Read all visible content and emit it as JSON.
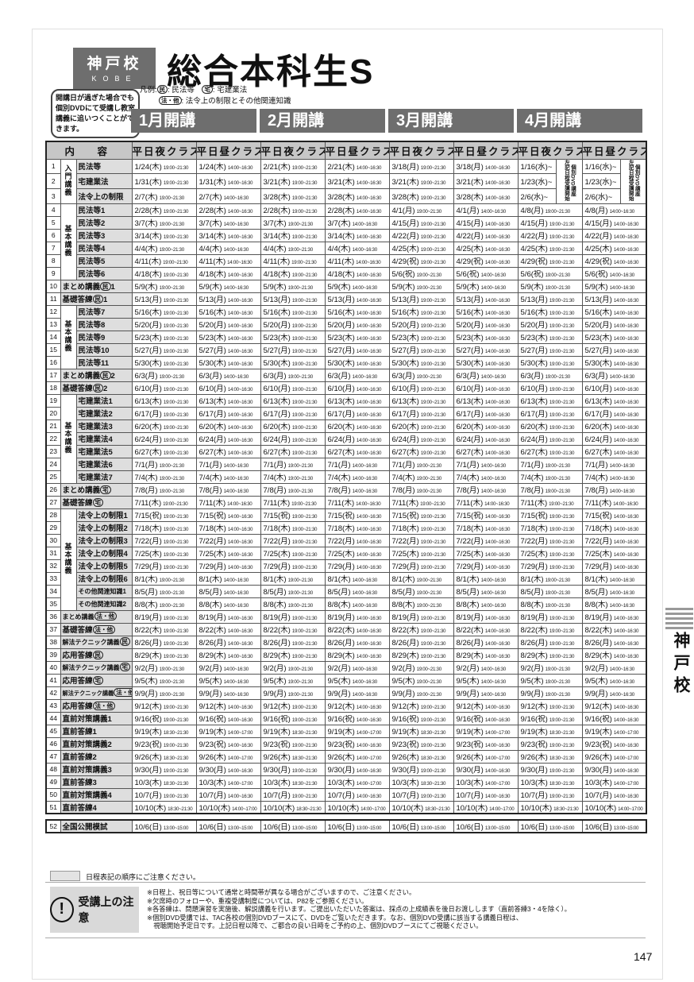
{
  "header": {
    "school_jp": "神戸校",
    "school_en": "KOBE",
    "title": "総合本科生S"
  },
  "intro": {
    "text": "開講日が過ぎた場合でも個別DVDにて受講し教室講義に追いつくことができます。"
  },
  "legend": {
    "prefix": "凡例:",
    "items": [
      {
        "mark": "民",
        "text": "民法等"
      },
      {
        "mark": "宅",
        "text": "宅建業法"
      },
      {
        "mark": "法・他",
        "text": "法令上の制限とその他関連知識"
      }
    ]
  },
  "months": [
    "1月開講",
    "2月開講",
    "3月開講",
    "4月開講"
  ],
  "table": {
    "content_header": "内　容",
    "class_labels": [
      "平日夜クラス",
      "平日昼クラス"
    ],
    "times": {
      "night": "19:00~21:30",
      "day": "14:00~16:30",
      "late_night": "18:30~21:30",
      "late_day": "14:00~17:00",
      "exam": "13:00~15:00"
    },
    "dvd_note": {
      "line1": "個別DVD講座",
      "line2": "左記日程受講開始"
    },
    "groups": [
      {
        "from": 1,
        "to": 3,
        "label": "入門講義"
      },
      {
        "from": 4,
        "to": 9,
        "label": "基本講義"
      },
      {
        "from": 12,
        "to": 16,
        "label": "基本講義"
      },
      {
        "from": 19,
        "to": 25,
        "label": "基本講義"
      },
      {
        "from": 28,
        "to": 35,
        "label": "基本講義"
      }
    ],
    "rows": [
      {
        "no": "1",
        "label": "民法等",
        "dvd": true,
        "dates": [
          "1/24(木)",
          "1/24(木)",
          "2/21(木)",
          "2/21(木)",
          "3/18(月)",
          "3/18(月)",
          "1/16(水)~",
          "1/16(水)~"
        ]
      },
      {
        "no": "2",
        "label": "宅建業法",
        "dvd": true,
        "dates": [
          "1/31(木)",
          "1/31(木)",
          "3/21(木)",
          "3/21(木)",
          "3/21(木)",
          "3/21(木)",
          "1/23(水)~",
          "1/23(水)~"
        ]
      },
      {
        "no": "3",
        "label": "法令上の制限",
        "dvd": true,
        "dates": [
          "2/7(木)",
          "2/7(木)",
          "3/28(木)",
          "3/28(木)",
          "3/28(木)",
          "3/28(木)",
          "2/6(水)~",
          "2/6(水)~"
        ]
      },
      {
        "no": "4",
        "label": "民法等1",
        "dates": [
          "2/28(木)",
          "2/28(木)",
          "2/28(木)",
          "2/28(木)",
          "4/1(月)",
          "4/1(月)",
          "4/8(月)",
          "4/8(月)"
        ]
      },
      {
        "no": "5",
        "label": "民法等2",
        "dates": [
          "3/7(木)",
          "3/7(木)",
          "3/7(木)",
          "3/7(木)",
          "4/15(月)",
          "4/15(月)",
          "4/15(月)",
          "4/15(月)"
        ]
      },
      {
        "no": "6",
        "label": "民法等3",
        "dates": [
          "3/14(木)",
          "3/14(木)",
          "3/14(木)",
          "3/14(木)",
          "4/22(月)",
          "4/22(月)",
          "4/22(月)",
          "4/22(月)"
        ]
      },
      {
        "no": "7",
        "label": "民法等4",
        "dates": [
          "4/4(木)",
          "4/4(木)",
          "4/4(木)",
          "4/4(木)",
          "4/25(木)",
          "4/25(木)",
          "4/25(木)",
          "4/25(木)"
        ]
      },
      {
        "no": "8",
        "label": "民法等5",
        "dates": [
          "4/11(木)",
          "4/11(木)",
          "4/11(木)",
          "4/11(木)",
          "4/29(祝)",
          "4/29(祝)",
          "4/29(祝)",
          "4/29(祝)"
        ]
      },
      {
        "no": "9",
        "label": "民法等6",
        "dates": [
          "4/18(木)",
          "4/18(木)",
          "4/18(木)",
          "4/18(木)",
          "5/6(祝)",
          "5/6(祝)",
          "5/6(祝)",
          "5/6(祝)"
        ]
      },
      {
        "no": "10",
        "label": "まとめ講義",
        "mark": "民",
        "tail": "1",
        "date": "5/9(木)"
      },
      {
        "no": "11",
        "label": "基礎答練",
        "mark": "民",
        "tail": "1",
        "date": "5/13(月)"
      },
      {
        "no": "12",
        "label": "民法等7",
        "date": "5/16(木)"
      },
      {
        "no": "13",
        "label": "民法等8",
        "date": "5/20(月)"
      },
      {
        "no": "14",
        "label": "民法等9",
        "date": "5/23(木)"
      },
      {
        "no": "15",
        "label": "民法等10",
        "date": "5/27(月)"
      },
      {
        "no": "16",
        "label": "民法等11",
        "date": "5/30(木)"
      },
      {
        "no": "17",
        "label": "まとめ講義",
        "mark": "民",
        "tail": "2",
        "date": "6/3(月)"
      },
      {
        "no": "18",
        "label": "基礎答練",
        "mark": "民",
        "tail": "2",
        "date": "6/10(月)"
      },
      {
        "no": "19",
        "label": "宅建業法1",
        "date": "6/13(木)"
      },
      {
        "no": "20",
        "label": "宅建業法2",
        "date": "6/17(月)"
      },
      {
        "no": "21",
        "label": "宅建業法3",
        "date": "6/20(木)"
      },
      {
        "no": "22",
        "label": "宅建業法4",
        "date": "6/24(月)"
      },
      {
        "no": "23",
        "label": "宅建業法5",
        "date": "6/27(木)"
      },
      {
        "no": "24",
        "label": "宅建業法6",
        "date": "7/1(月)"
      },
      {
        "no": "25",
        "label": "宅建業法7",
        "date": "7/4(木)"
      },
      {
        "no": "26",
        "label": "まとめ講義",
        "mark": "宅",
        "date": "7/8(月)"
      },
      {
        "no": "27",
        "label": "基礎答練",
        "mark": "宅",
        "date": "7/11(木)"
      },
      {
        "no": "28",
        "label": "法令上の制限1",
        "date": "7/15(祝)"
      },
      {
        "no": "29",
        "label": "法令上の制限2",
        "date": "7/18(木)"
      },
      {
        "no": "30",
        "label": "法令上の制限3",
        "date": "7/22(月)"
      },
      {
        "no": "31",
        "label": "法令上の制限4",
        "date": "7/25(木)"
      },
      {
        "no": "32",
        "label": "法令上の制限5",
        "date": "7/29(月)"
      },
      {
        "no": "33",
        "label": "法令上の制限6",
        "date": "8/1(木)"
      },
      {
        "no": "34",
        "label": "その他関連知識1",
        "date": "8/5(月)"
      },
      {
        "no": "35",
        "label": "その他関連知識2",
        "date": "8/8(木)"
      },
      {
        "no": "36",
        "label": "まとめ講義",
        "mark": "法・他",
        "date": "8/19(月)"
      },
      {
        "no": "37",
        "label": "基礎答練",
        "mark": "法・他",
        "date": "8/22(木)"
      },
      {
        "no": "38",
        "label": "解法テクニック講義",
        "mark": "民",
        "date": "8/26(月)"
      },
      {
        "no": "39",
        "label": "応用答練",
        "mark": "民",
        "date": "8/29(木)"
      },
      {
        "no": "40",
        "label": "解法テクニック講義",
        "mark": "宅",
        "date": "9/2(月)"
      },
      {
        "no": "41",
        "label": "応用答練",
        "mark": "宅",
        "date": "9/5(木)"
      },
      {
        "no": "42",
        "label": "解法テクニック講義",
        "mark": "法・他",
        "date": "9/9(月)"
      },
      {
        "no": "43",
        "label": "応用答練",
        "mark": "法・他",
        "date": "9/12(木)"
      },
      {
        "no": "44",
        "label": "直前対策講義1",
        "date": "9/16(祝)"
      },
      {
        "no": "45",
        "label": "直前答練1",
        "date": "9/19(木)",
        "t": "late"
      },
      {
        "no": "46",
        "label": "直前対策講義2",
        "date": "9/23(祝)"
      },
      {
        "no": "47",
        "label": "直前答練2",
        "date": "9/26(木)",
        "t": "late"
      },
      {
        "no": "48",
        "label": "直前対策講義3",
        "date": "9/30(月)"
      },
      {
        "no": "49",
        "label": "直前答練3",
        "date": "10/3(木)",
        "t": "late"
      },
      {
        "no": "50",
        "label": "直前対策講義4",
        "date": "10/7(月)"
      },
      {
        "no": "51",
        "label": "直前答練4",
        "date": "10/10(木)",
        "t": "late"
      }
    ],
    "exam_row": {
      "no": "52",
      "label": "全国公開模試",
      "date": "10/6(日)"
    }
  },
  "caption": {
    "text": "日程表記の順序にご注意ください。"
  },
  "notice": {
    "title": "受講上の注意",
    "icon": "!",
    "lines": [
      "※日程上、祝日等について通常と時間帯が異なる場合がございますので、ご注意ください。",
      "※欠席時のフォローや、重複受講制度については、P82をご参照ください。",
      "※各答練は、問題演習を実施後、解説講義を行います。ご提出いただいた答案は、採点の上成績表を後日お渡しします（直前答練3・4を除く）。",
      "※個別DVD受講では、TAC各校の個別DVDブースにて、DVDをご覧いただきます。なお、個別DVD受講に該当する講義日程は、",
      "　視聴開始予定日です。上記日程以降で、ご都合の良い日時をご予約の上、個別DVDブースにてご視聴ください。"
    ]
  },
  "side_tab": {
    "text": "神戸校"
  },
  "page_number": "147"
}
